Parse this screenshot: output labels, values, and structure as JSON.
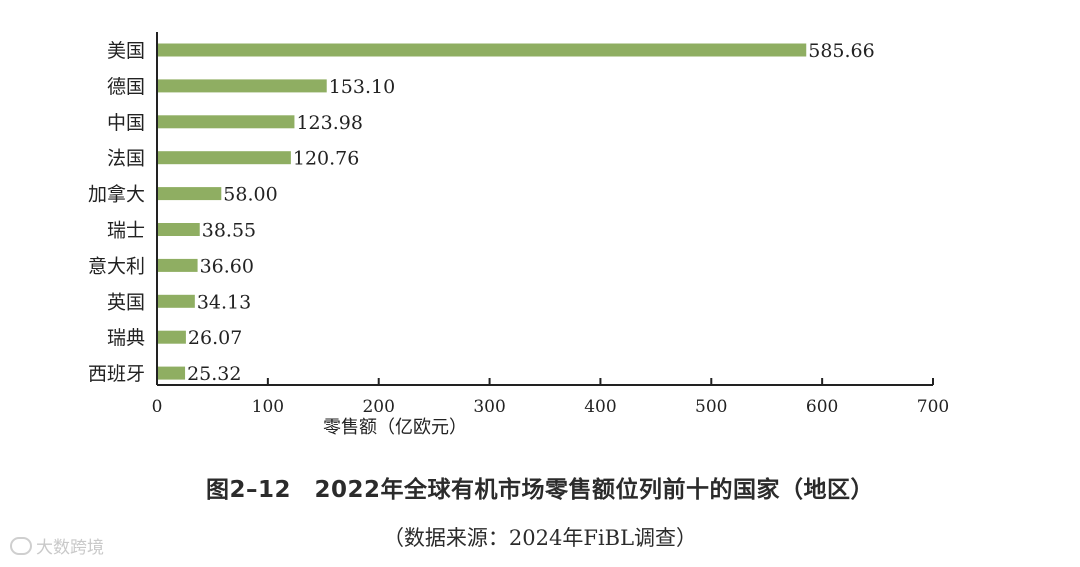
{
  "chart_data": {
    "type": "bar",
    "orientation": "horizontal",
    "categories": [
      "美国",
      "德国",
      "中国",
      "法国",
      "加拿大",
      "瑞士",
      "意大利",
      "英国",
      "瑞典",
      "西班牙"
    ],
    "values": [
      585.66,
      153.1,
      123.98,
      120.76,
      58.0,
      38.55,
      36.6,
      34.13,
      26.07,
      25.32
    ],
    "value_labels": [
      "585.66",
      "153.10",
      "123.98",
      "120.76",
      "58.00",
      "38.55",
      "36.60",
      "34.13",
      "26.07",
      "25.32"
    ],
    "xlabel": "零售额（亿欧元）",
    "ylabel": "",
    "xlim": [
      0,
      700
    ],
    "xticks": [
      0,
      100,
      200,
      300,
      400,
      500,
      600,
      700
    ],
    "grid": false,
    "bar_color": "#8fae62"
  },
  "figure": {
    "title": "图2–12　2022年全球有机市场零售额位列前十的国家（地区）",
    "source": "（数据来源：2024年FiBL调查）"
  },
  "watermark": {
    "text": "大数跨境",
    "icon": "logo-icon"
  }
}
